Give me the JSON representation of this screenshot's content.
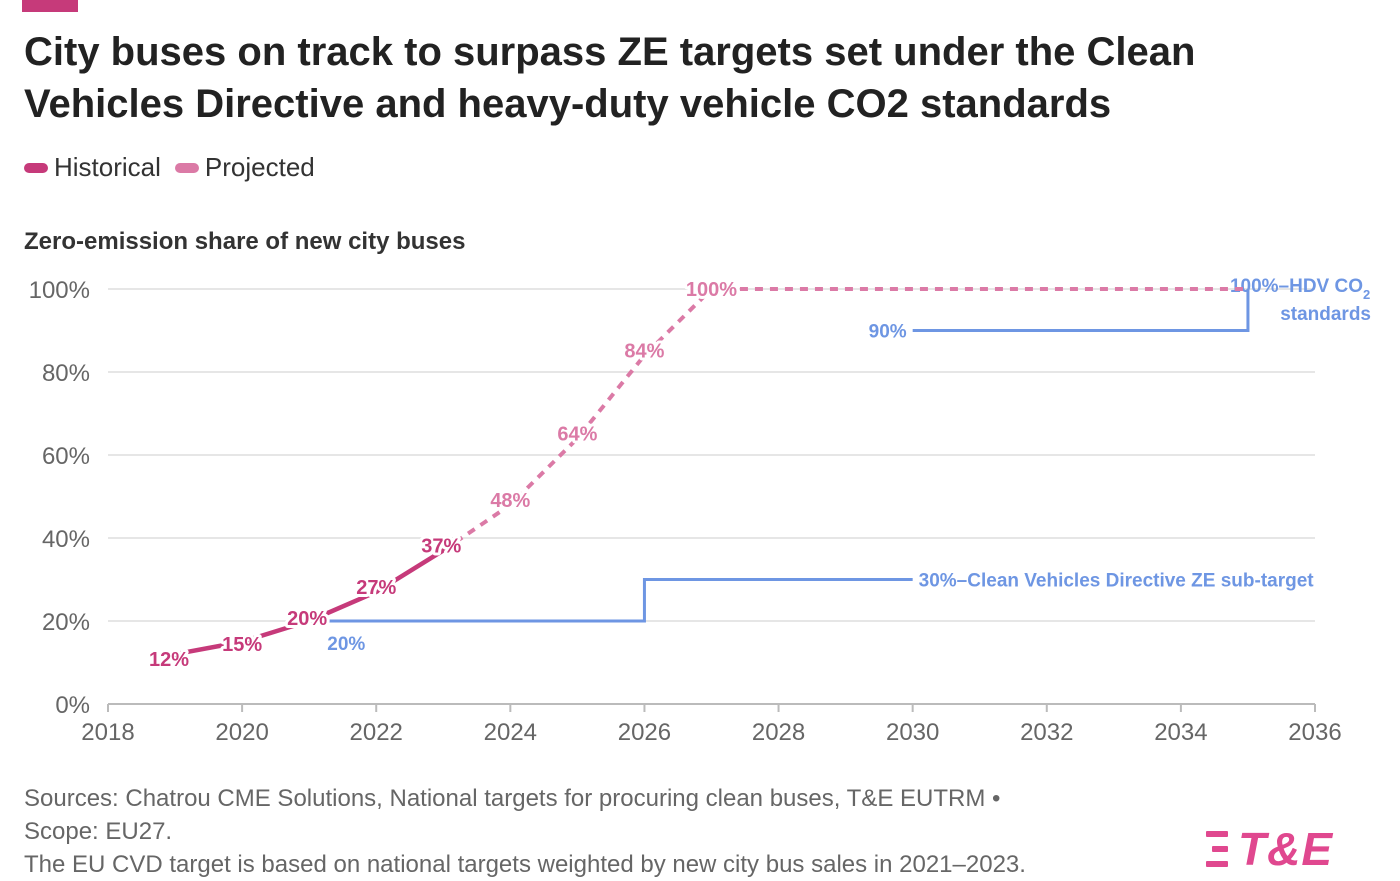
{
  "title": "City buses on track to surpass ZE targets set under the Clean Vehicles Directive and heavy-duty vehicle CO2 standards",
  "legend": [
    {
      "label": "Historical",
      "color": "#c63a7a"
    },
    {
      "label": "Projected",
      "color": "#db7aa6"
    }
  ],
  "footer": {
    "line1": "Sources: Chatrou CME Solutions, National targets for procuring clean buses, T&E EUTRM •",
    "line2": "Scope: EU27.",
    "line3": "The EU CVD target is based on national targets weighted by new city bus sales in 2021–2023."
  },
  "logo_text": "T&E",
  "chart_data": {
    "type": "line",
    "title": "Zero-emission share of new city buses",
    "xlim": [
      2018,
      2036
    ],
    "ylim": [
      0,
      100
    ],
    "x_ticks": [
      2018,
      2020,
      2022,
      2024,
      2026,
      2028,
      2030,
      2032,
      2034,
      2036
    ],
    "y_ticks": [
      0,
      20,
      40,
      60,
      80,
      100
    ],
    "y_tick_labels": [
      "0%",
      "20%",
      "40%",
      "60%",
      "80%",
      "100%"
    ],
    "grid": "horizontal",
    "series": [
      {
        "name": "Historical",
        "color": "#c63a7a",
        "style": "solid",
        "points": [
          [
            2019,
            12
          ],
          [
            2020,
            15
          ],
          [
            2021,
            20
          ],
          [
            2022,
            27
          ],
          [
            2023,
            37
          ]
        ],
        "labels": [
          "12%",
          "15%",
          "20%",
          "27%",
          "37%"
        ]
      },
      {
        "name": "Projected",
        "color": "#db7aa6",
        "style": "dotted",
        "points": [
          [
            2023,
            37
          ],
          [
            2024,
            48
          ],
          [
            2025,
            64
          ],
          [
            2026,
            84
          ],
          [
            2027,
            100
          ],
          [
            2035,
            100
          ]
        ],
        "labels": [
          "",
          "48%",
          "64%",
          "84%",
          "100%",
          ""
        ]
      },
      {
        "color": "#6e96e3",
        "style": "step",
        "points": [
          [
            2021.3,
            20
          ],
          [
            2026,
            20
          ],
          [
            2026,
            30
          ],
          [
            2030,
            30
          ]
        ],
        "start_label": "20%",
        "end_label": "30%–Clean Vehicles Directive ZE sub-target"
      },
      {
        "color": "#6e96e3",
        "style": "step",
        "points": [
          [
            2030,
            90
          ],
          [
            2035,
            90
          ],
          [
            2035,
            100
          ]
        ],
        "start_label": "90%",
        "end_label_line1": "100%–HDV CO",
        "end_label_sub": "2",
        "end_label_line2": "standards"
      }
    ]
  }
}
